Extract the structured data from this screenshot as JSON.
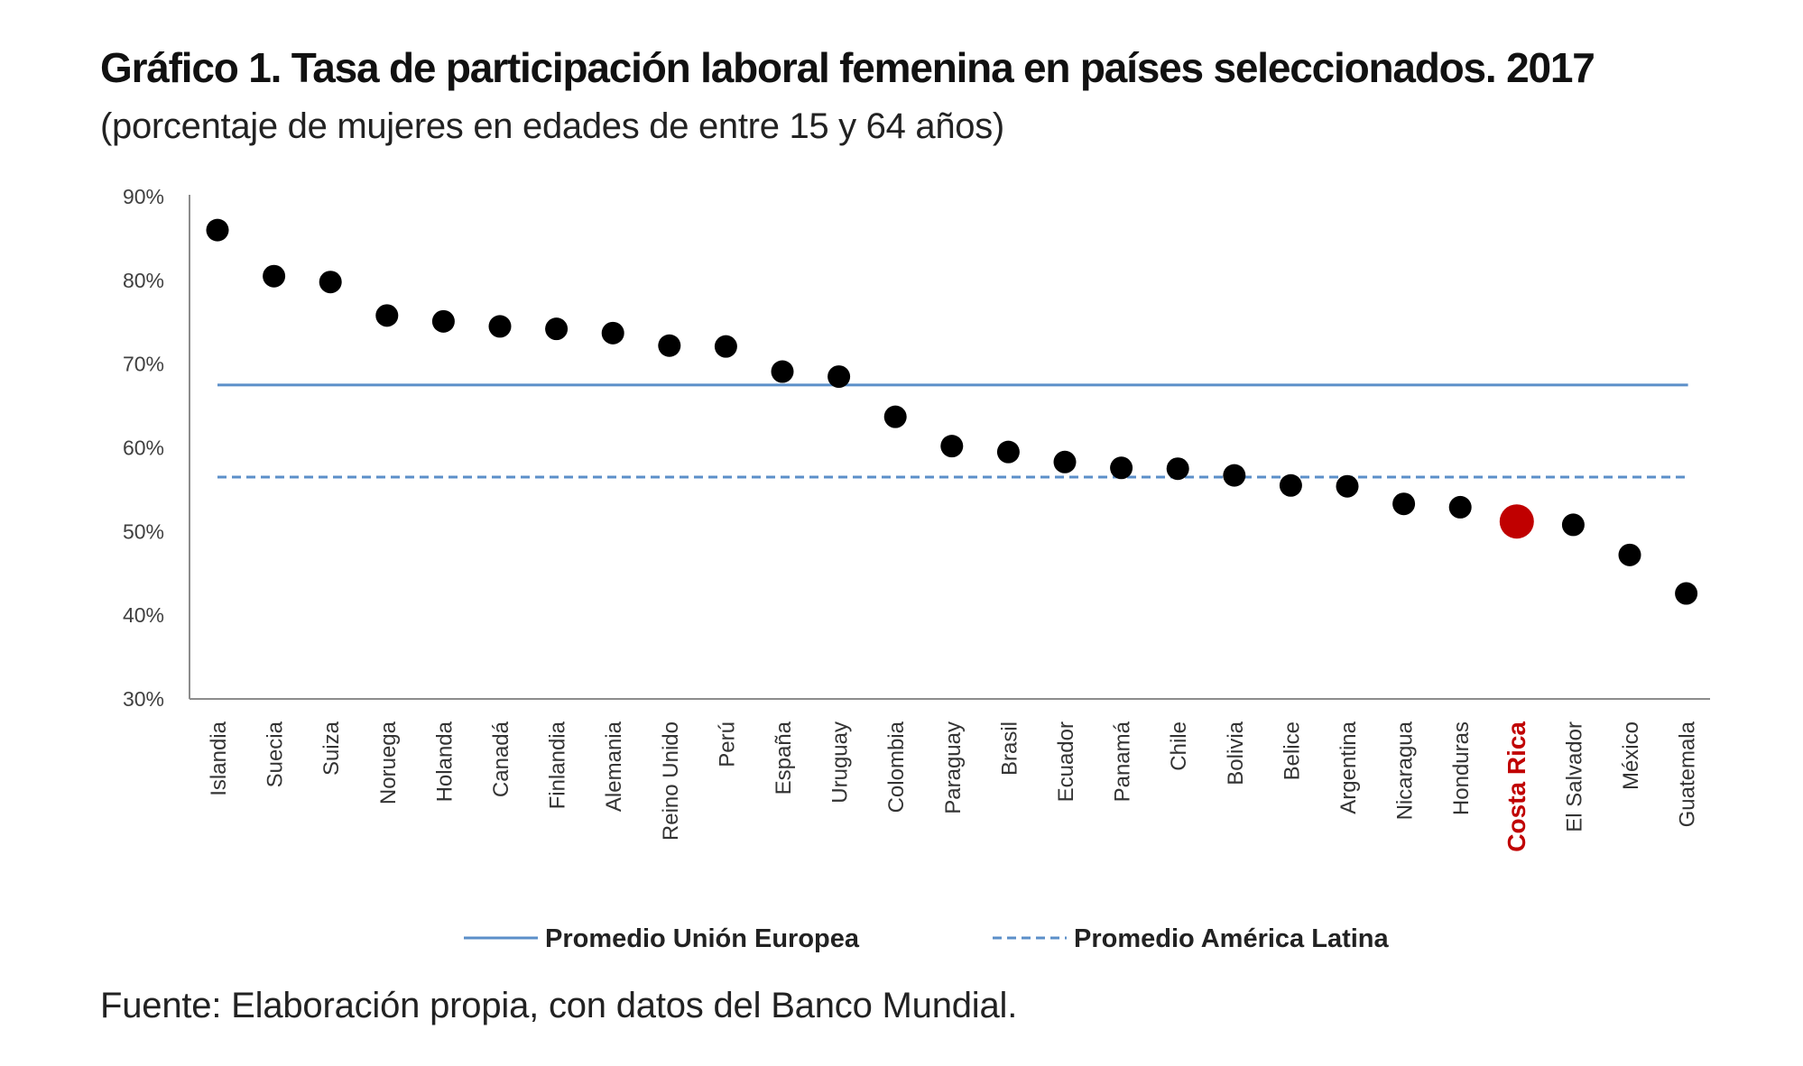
{
  "title": "Gráfico 1. Tasa de participación laboral femenina en países seleccionados. 2017",
  "subtitle": "(porcentaje de mujeres en edades de entre 15 y 64 años)",
  "source": "Fuente: Elaboración propia, con datos del Banco Mundial.",
  "chart_data": {
    "type": "scatter",
    "title": "Gráfico 1. Tasa de participación laboral femenina en países seleccionados. 2017",
    "ylim": [
      30,
      90
    ],
    "yticks": [
      90,
      80,
      70,
      60,
      50,
      40,
      30
    ],
    "ytick_labels": [
      "90%",
      "80%",
      "70%",
      "60%",
      "50%",
      "40%",
      "30%"
    ],
    "grid": false,
    "categories": [
      "Islandia",
      "Suecia",
      "Suiza",
      "Noruega",
      "Holanda",
      "Canadá",
      "Finlandia",
      "Alemania",
      "Reino Unido",
      "Perú",
      "España",
      "Uruguay",
      "Colombia",
      "Paraguay",
      "Brasil",
      "Ecuador",
      "Panamá",
      "Chile",
      "Bolivia",
      "Belice",
      "Argentina",
      "Nicaragua",
      "Honduras",
      "Costa Rica",
      "El Salvador",
      "México",
      "Guatemala"
    ],
    "values": [
      86.0,
      80.5,
      79.8,
      75.8,
      75.1,
      74.5,
      74.2,
      73.7,
      72.2,
      72.1,
      69.1,
      68.5,
      63.7,
      60.2,
      59.5,
      58.3,
      57.6,
      57.5,
      56.7,
      55.5,
      55.4,
      53.3,
      52.9,
      51.2,
      50.8,
      47.2,
      42.6
    ],
    "highlight": "Costa Rica",
    "highlight_color": "#c00000",
    "point_color": "#000000",
    "reference_lines": [
      {
        "name": "Promedio Unión Europea",
        "value": 67.5,
        "style": "solid",
        "color": "#5b8fc9"
      },
      {
        "name": "Promedio América Latina",
        "value": 56.5,
        "style": "dashed",
        "color": "#5b8fc9"
      }
    ],
    "legend_position": "bottom-center"
  }
}
